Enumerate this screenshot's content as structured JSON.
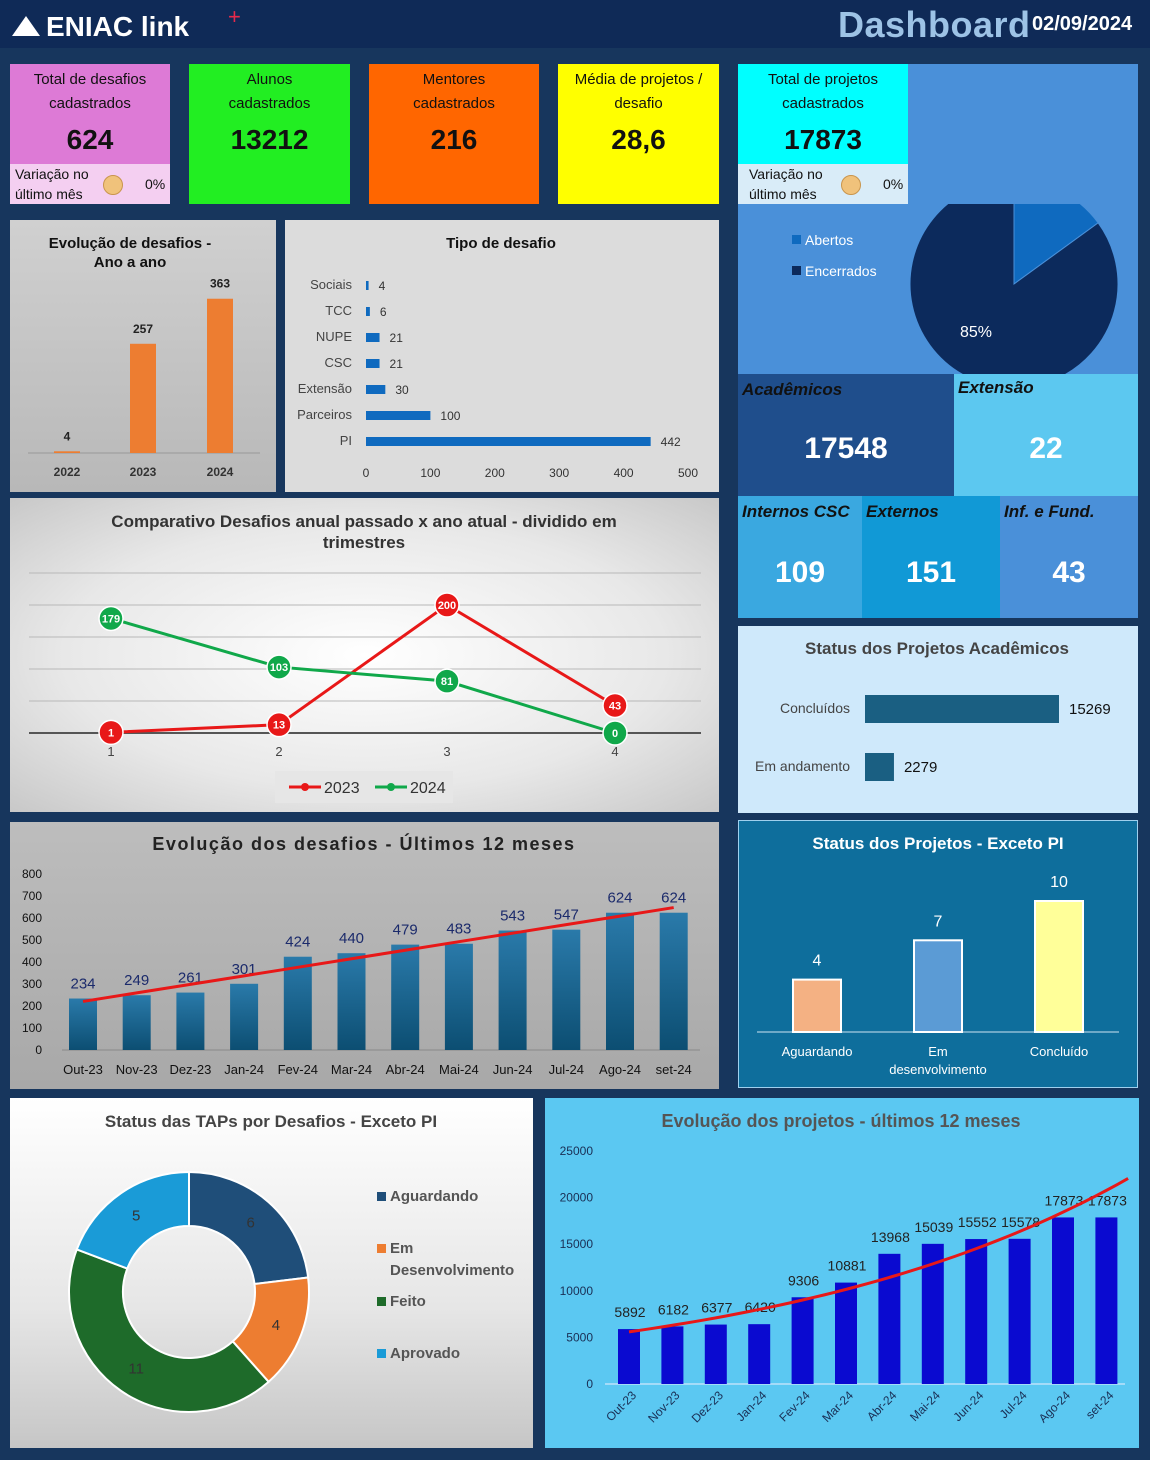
{
  "header": {
    "logo_text": "ENIAC link",
    "logo_plus": "+",
    "title": "Dashboard",
    "date": "02/09/2024"
  },
  "kpis": {
    "desafios": {
      "label_1": "Total de desafios",
      "label_2": "cadastrados",
      "value": "624",
      "var_label_1": "Variação no",
      "var_label_2": "último mês",
      "var_value": "0%"
    },
    "alunos": {
      "label_1": "Alunos",
      "label_2": "cadastrados",
      "value": "13212"
    },
    "mentores": {
      "label_1": "Mentores",
      "label_2": "cadastrados",
      "value": "216"
    },
    "media": {
      "label_1": "Média de projetos /",
      "label_2": "desafio",
      "value": "28,6"
    },
    "projetos": {
      "label_1": "Total de projetos",
      "label_2": "cadastrados",
      "value": "17873",
      "var_label_1": "Variação no",
      "var_label_2": "último mês",
      "var_value": "0%"
    }
  },
  "boxes": {
    "academicos": {
      "label": "Acadêmicos",
      "value": "17548"
    },
    "extensao": {
      "label": "Extensão",
      "value": "22"
    },
    "internos": {
      "label": "Internos CSC",
      "value": "109"
    },
    "externos": {
      "label": "Externos",
      "value": "151"
    },
    "inf_fund": {
      "label": "Inf. e Fund.",
      "value": "43"
    }
  },
  "colors": {
    "kpi_desafios": "#dd7ad6",
    "kpi_desafios_var": "#f4cff1",
    "kpi_alunos": "#22ee22",
    "kpi_mentores": "#ff6600",
    "kpi_media": "#ffff00",
    "kpi_projetos": "#00ffff",
    "kpi_projetos_var": "#d9ecf8",
    "orange_bar": "#ed7d31",
    "blue_bar": "#0f6abf",
    "navy": "#0c2a5c",
    "red_line": "#e81818",
    "green_line": "#10a84a"
  },
  "chart_data": [
    {
      "id": "pie_projetos",
      "type": "pie",
      "categories": [
        "Abertos",
        "Encerrados"
      ],
      "values": [
        15,
        85
      ],
      "labels": [
        "15%",
        "85%"
      ],
      "colors": [
        "#0f6abf",
        "#0c2a5c"
      ],
      "legend": "left"
    },
    {
      "id": "evolucao_anual",
      "type": "bar",
      "title": "Evolução de desafios - Ano a ano",
      "title_1": "Evolução de desafios  -",
      "title_2": "Ano a ano",
      "categories": [
        "2022",
        "2023",
        "2024"
      ],
      "values": [
        4,
        257,
        363
      ],
      "ylim": [
        0,
        400
      ]
    },
    {
      "id": "tipo_desafio",
      "type": "bar",
      "orientation": "horizontal",
      "title": "Tipo de desafio",
      "categories": [
        "Sociais",
        "TCC",
        "NUPE",
        "CSC",
        "Extensão",
        "Parceiros",
        "PI"
      ],
      "values": [
        4,
        6,
        21,
        21,
        30,
        100,
        442
      ],
      "xlim": [
        0,
        500
      ],
      "ticks": [
        "0",
        "100",
        "200",
        "300",
        "400",
        "500"
      ]
    },
    {
      "id": "comparativo",
      "type": "line",
      "title_1": "Comparativo Desafios anual passado x ano atual - dividido em",
      "title_2": "trimestres",
      "x": [
        "1",
        "2",
        "3",
        "4"
      ],
      "series": [
        {
          "name": "2023",
          "values": [
            1,
            13,
            200,
            43
          ],
          "color": "#e81818"
        },
        {
          "name": "2024",
          "values": [
            179,
            103,
            81,
            0
          ],
          "color": "#10a84a"
        }
      ],
      "ylim": [
        0,
        250
      ],
      "grid": true,
      "legend": "bottom"
    },
    {
      "id": "status_academicos",
      "type": "bar",
      "orientation": "horizontal",
      "title": "Status dos Projetos Acadêmicos",
      "categories": [
        "Concluídos",
        "Em andamento"
      ],
      "values": [
        15269,
        2279
      ]
    },
    {
      "id": "evolucao_12m",
      "type": "bar",
      "title": "Evolução dos desafios - Últimos 12 meses",
      "categories": [
        "Out-23",
        "Nov-23",
        "Dez-23",
        "Jan-24",
        "Fev-24",
        "Mar-24",
        "Abr-24",
        "Mai-24",
        "Jun-24",
        "Jul-24",
        "Ago-24",
        "set-24"
      ],
      "values": [
        234,
        249,
        261,
        301,
        424,
        440,
        479,
        483,
        543,
        547,
        624,
        624
      ],
      "ylim": [
        0,
        800
      ],
      "yticks": [
        "0",
        "100",
        "200",
        "300",
        "400",
        "500",
        "600",
        "700",
        "800"
      ],
      "trendline": true
    },
    {
      "id": "status_exceto_pi",
      "type": "bar",
      "title": "Status dos Projetos - Exceto PI",
      "categories": [
        "Aguardando",
        "Em desenvolvimento",
        "Concluído"
      ],
      "category_lines": [
        [
          "Aguardando"
        ],
        [
          "Em",
          "desenvolvimento"
        ],
        [
          "Concluído"
        ]
      ],
      "values": [
        4,
        7,
        10
      ],
      "colors": [
        "#f4b183",
        "#5b9bd5",
        "#ffff99"
      ]
    },
    {
      "id": "taps",
      "type": "pie",
      "donut": true,
      "title": "Status das TAPs por Desafios - Exceto PI",
      "categories": [
        "Aguardando",
        "Em Desenvolvimento",
        "Feito",
        "Aprovado"
      ],
      "legend_lines": [
        [
          "Aguardando"
        ],
        [
          "Em",
          "Desenvolvimento"
        ],
        [
          "Feito"
        ],
        [
          "Aprovado"
        ]
      ],
      "values": [
        6,
        4,
        11,
        5
      ],
      "colors": [
        "#1f4e79",
        "#ed7d31",
        "#1e6b2a",
        "#1a9bd7"
      ],
      "legend": "right"
    },
    {
      "id": "evolucao_projetos",
      "type": "bar",
      "title": "Evolução dos projetos - últimos 12 meses",
      "categories": [
        "Out-23",
        "Nov-23",
        "Dez-23",
        "Jan-24",
        "Fev-24",
        "Mar-24",
        "Abr-24",
        "Mai-24",
        "Jun-24",
        "Jul-24",
        "Ago-24",
        "set-24"
      ],
      "values": [
        5892,
        6182,
        6377,
        6420,
        9306,
        10881,
        13968,
        15039,
        15552,
        15578,
        17873,
        17873
      ],
      "ylim": [
        0,
        25000
      ],
      "yticks": [
        "0",
        "5000",
        "10000",
        "15000",
        "20000",
        "25000"
      ],
      "trendline": true
    }
  ]
}
